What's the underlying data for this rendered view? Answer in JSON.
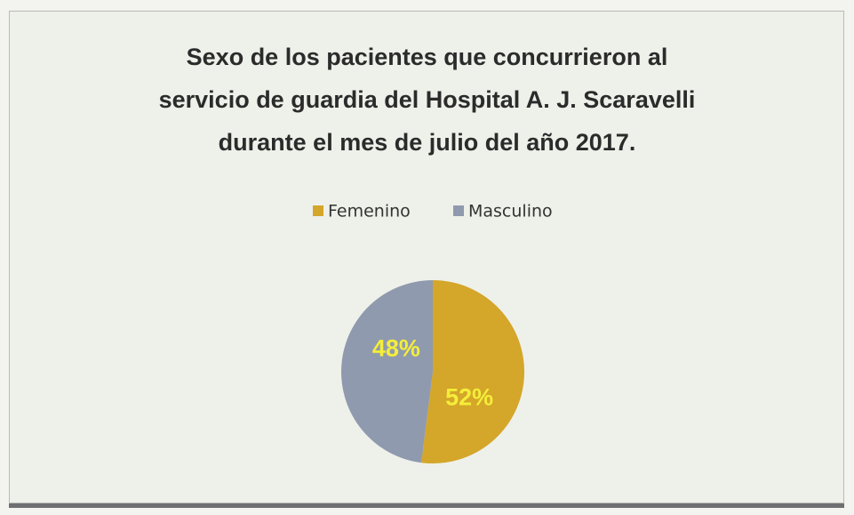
{
  "chart_data": {
    "type": "pie",
    "title": "Sexo de los pacientes que concurrieron  al\nservicio de guardia del Hospital A. J. Scaravelli\ndurante el mes de julio del año 2017.",
    "categories": [
      "Femenino",
      "Masculino"
    ],
    "values": [
      52,
      48
    ],
    "value_labels": [
      "52%",
      "48%"
    ],
    "colors": [
      "#d4a629",
      "#8f9aae"
    ],
    "legend": "top"
  }
}
